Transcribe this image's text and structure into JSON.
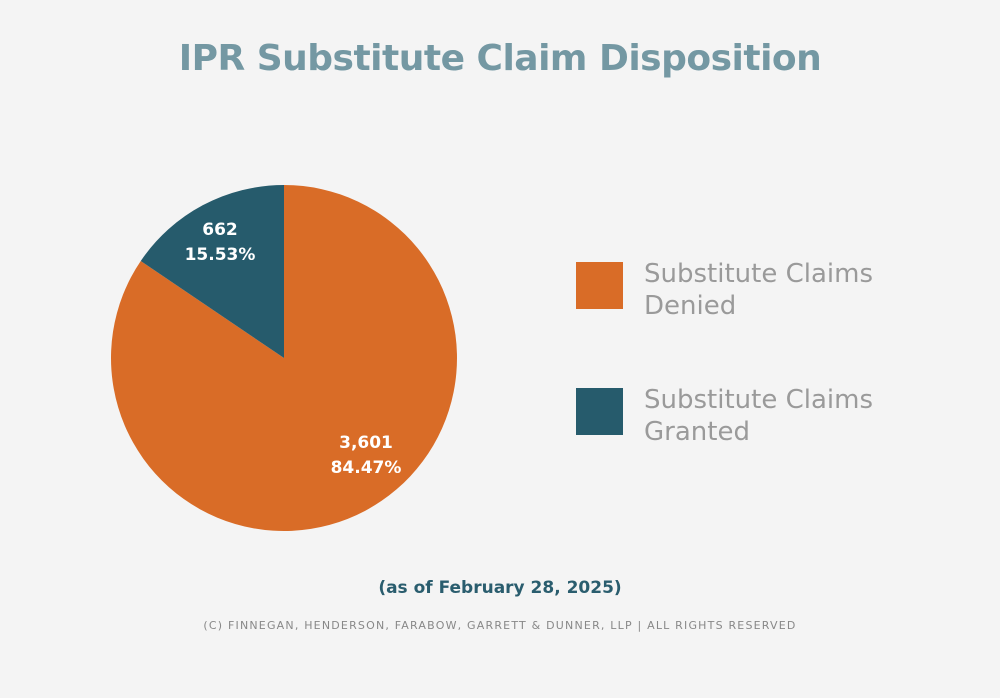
{
  "chart_data": {
    "type": "pie",
    "title": "IPR Substitute Claim Disposition",
    "slices": [
      {
        "name": "Substitute Claims Denied",
        "value": 3601,
        "value_label": "3,601",
        "percent_label": "84.47%",
        "color": "#d96c27"
      },
      {
        "name": "Substitute Claims Granted",
        "value": 662,
        "value_label": "662",
        "percent_label": "15.53%",
        "color": "#265b6c"
      }
    ],
    "start_angle": "12 o'clock",
    "direction": "clockwise for Denied, Granted counterclockwise from top",
    "legend_placement": "right"
  },
  "subtitle": "(as of February 28, 2025)",
  "copyright": "(C) FINNEGAN, HENDERSON, FARABOW, GARRETT & DUNNER, LLP | ALL RIGHTS RESERVED"
}
